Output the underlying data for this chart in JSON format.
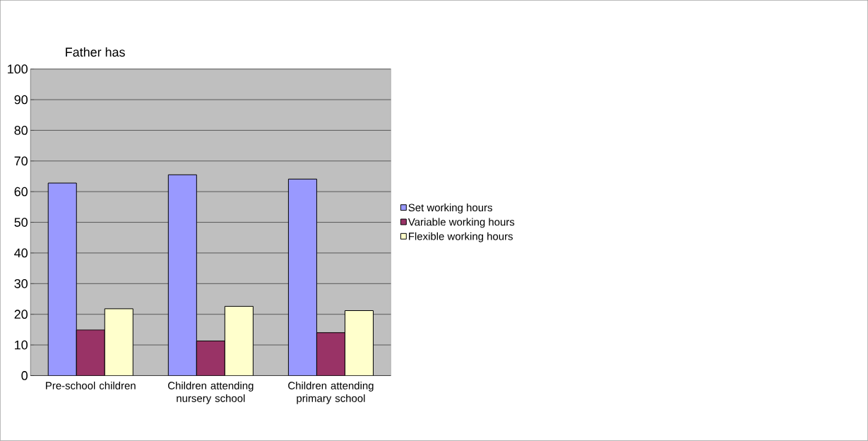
{
  "chart_data": {
    "type": "bar",
    "title": "Father has",
    "categories": [
      "Pre-school children",
      "Children attending nursery school",
      "Children attending primary school"
    ],
    "series": [
      {
        "name": "Set working hours",
        "color": "#9999ff",
        "values": [
          62.8,
          65.5,
          64.1
        ]
      },
      {
        "name": "Variable working hours",
        "color": "#993366",
        "values": [
          14.9,
          11.3,
          14.0
        ]
      },
      {
        "name": "Flexible working hours",
        "color": "#ffffcc",
        "values": [
          21.8,
          22.6,
          21.2
        ]
      }
    ],
    "ylim": [
      0,
      100
    ],
    "yticks": [
      0,
      10,
      20,
      30,
      40,
      50,
      60,
      70,
      80,
      90,
      100
    ],
    "grid": "y",
    "legend": "right"
  }
}
